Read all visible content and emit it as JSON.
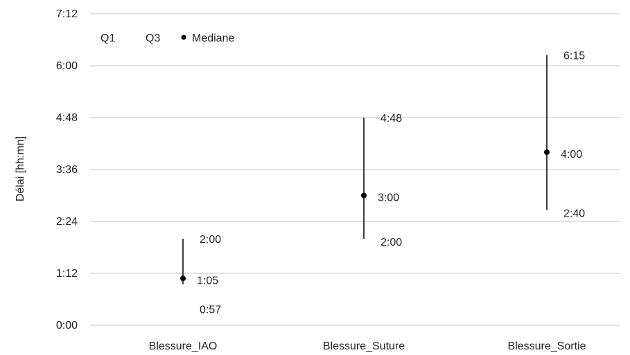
{
  "chart_data": {
    "type": "scatter",
    "ylabel": "Délai [hh:mn]",
    "y_ticks": [
      "0:00",
      "1:12",
      "2:24",
      "3:36",
      "4:48",
      "6:00",
      "7:12"
    ],
    "ylim_minutes": [
      0,
      432
    ],
    "grid": true,
    "legend": {
      "placement": "top-left",
      "entries": [
        "Q1",
        "Q3",
        "Mediane"
      ]
    },
    "categories": [
      "Blessure_IAO",
      "Blessure_Suture",
      "Blessure_Sortie"
    ],
    "series": [
      {
        "name": "Q1",
        "values": [
          "0:57",
          "2:00",
          "2:40"
        ],
        "values_minutes": [
          57,
          120,
          160
        ]
      },
      {
        "name": "Q3",
        "values": [
          "2:00",
          "4:48",
          "6:15"
        ],
        "values_minutes": [
          120,
          288,
          375
        ]
      },
      {
        "name": "Mediane",
        "values": [
          "1:05",
          "3:00",
          "4:00"
        ],
        "values_minutes": [
          65,
          180,
          240
        ]
      }
    ],
    "colors": {
      "range_line": "#404040",
      "marker": "#000000",
      "grid": "#d9d9d9"
    }
  }
}
